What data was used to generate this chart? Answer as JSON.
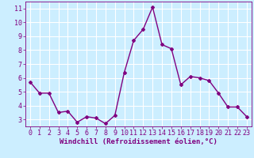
{
  "x": [
    0,
    1,
    2,
    3,
    4,
    5,
    6,
    7,
    8,
    9,
    10,
    11,
    12,
    13,
    14,
    15,
    16,
    17,
    18,
    19,
    20,
    21,
    22,
    23
  ],
  "y": [
    5.7,
    4.9,
    4.9,
    3.5,
    3.6,
    2.8,
    3.2,
    3.1,
    2.7,
    3.3,
    6.4,
    8.7,
    9.5,
    11.1,
    8.4,
    8.1,
    5.5,
    6.1,
    6.0,
    5.8,
    4.9,
    3.9,
    3.9,
    3.2
  ],
  "line_color": "#800080",
  "marker": "D",
  "marker_size": 2,
  "bg_color": "#cceeff",
  "grid_color": "#ffffff",
  "xlabel": "Windchill (Refroidissement éolien,°C)",
  "xlabel_fontsize": 6.5,
  "yticks": [
    3,
    4,
    5,
    6,
    7,
    8,
    9,
    10,
    11
  ],
  "ylim": [
    2.5,
    11.5
  ],
  "xlim": [
    -0.5,
    23.5
  ],
  "tick_fontsize": 6,
  "line_width": 1.0
}
